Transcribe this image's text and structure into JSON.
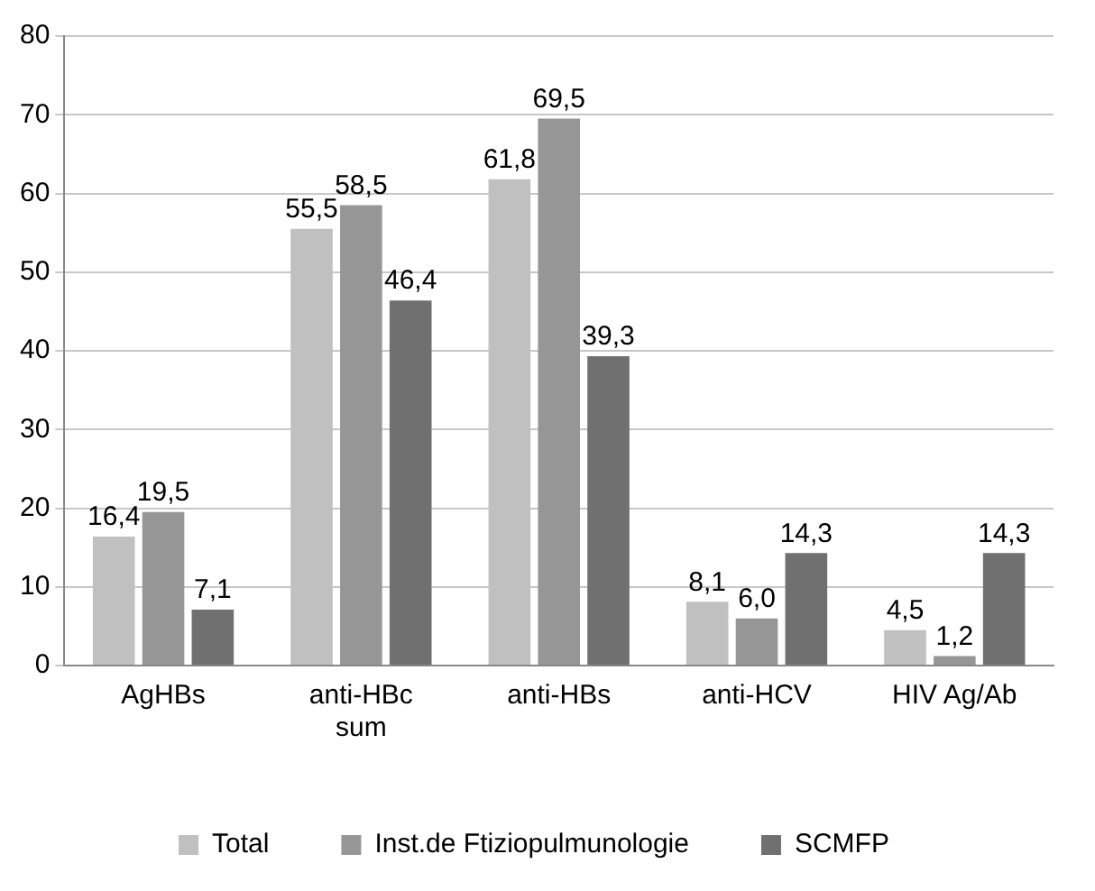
{
  "chart_data": {
    "type": "bar",
    "categories": [
      "AgHBs",
      "anti-HBc\nsum",
      "anti-HBs",
      "anti-HCV",
      "HIV Ag/Ab"
    ],
    "series": [
      {
        "name": "Total",
        "color": "#c0c0c0",
        "values": [
          16.4,
          55.5,
          61.8,
          8.1,
          4.5
        ],
        "value_labels": [
          "16,4",
          "55,5",
          "61,8",
          "8,1",
          "4,5"
        ]
      },
      {
        "name": "Inst.de Ftiziopulmunologie",
        "color": "#969696",
        "values": [
          19.5,
          58.5,
          69.5,
          6.0,
          1.2
        ],
        "value_labels": [
          "19,5",
          "58,5",
          "69,5",
          "6,0",
          "1,2"
        ]
      },
      {
        "name": "SCMFP",
        "color": "#707070",
        "values": [
          7.1,
          46.4,
          39.3,
          14.3,
          14.3
        ],
        "value_labels": [
          "7,1",
          "46,4",
          "39,3",
          "14,3",
          "14,3"
        ]
      }
    ],
    "ylim": [
      0,
      80
    ],
    "yticks": [
      0,
      10,
      20,
      30,
      40,
      50,
      60,
      70,
      80
    ],
    "grid": "y",
    "legend": "bottom"
  }
}
